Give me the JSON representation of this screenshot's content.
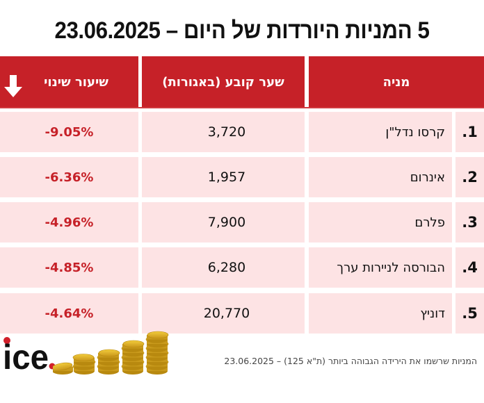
{
  "title": "5 המניות היורדות של היום – 23.06.2025",
  "table": {
    "headers": {
      "name": "מניה",
      "price": "שער קובע (באגורות)",
      "change": "שיעור שינוי"
    },
    "header_icon": "arrow-down-icon",
    "rows": [
      {
        "index": "1.",
        "name": "קרסו נדל\"ן",
        "price": "3,720",
        "change": "-9.05%"
      },
      {
        "index": "2.",
        "name": "אינרום",
        "price": "1,957",
        "change": "-6.36%"
      },
      {
        "index": "3.",
        "name": "פלרם",
        "price": "7,900",
        "change": "-4.96%"
      },
      {
        "index": "4.",
        "name": "הבורסה לניירות ערך",
        "price": "6,280",
        "change": "-4.85%"
      },
      {
        "index": "5.",
        "name": "דוניץ",
        "price": "20,770",
        "change": "-4.64%"
      }
    ]
  },
  "logo": {
    "text": "ice."
  },
  "footer": "המניות שרשמו את הירידה הגבוהה ביותר (ת\"א 125) – 23.06.2025",
  "colors": {
    "accent": "#c62128",
    "row_bg": "#fde3e4",
    "change_text": "#c62128",
    "coin": "#e1b32a"
  }
}
